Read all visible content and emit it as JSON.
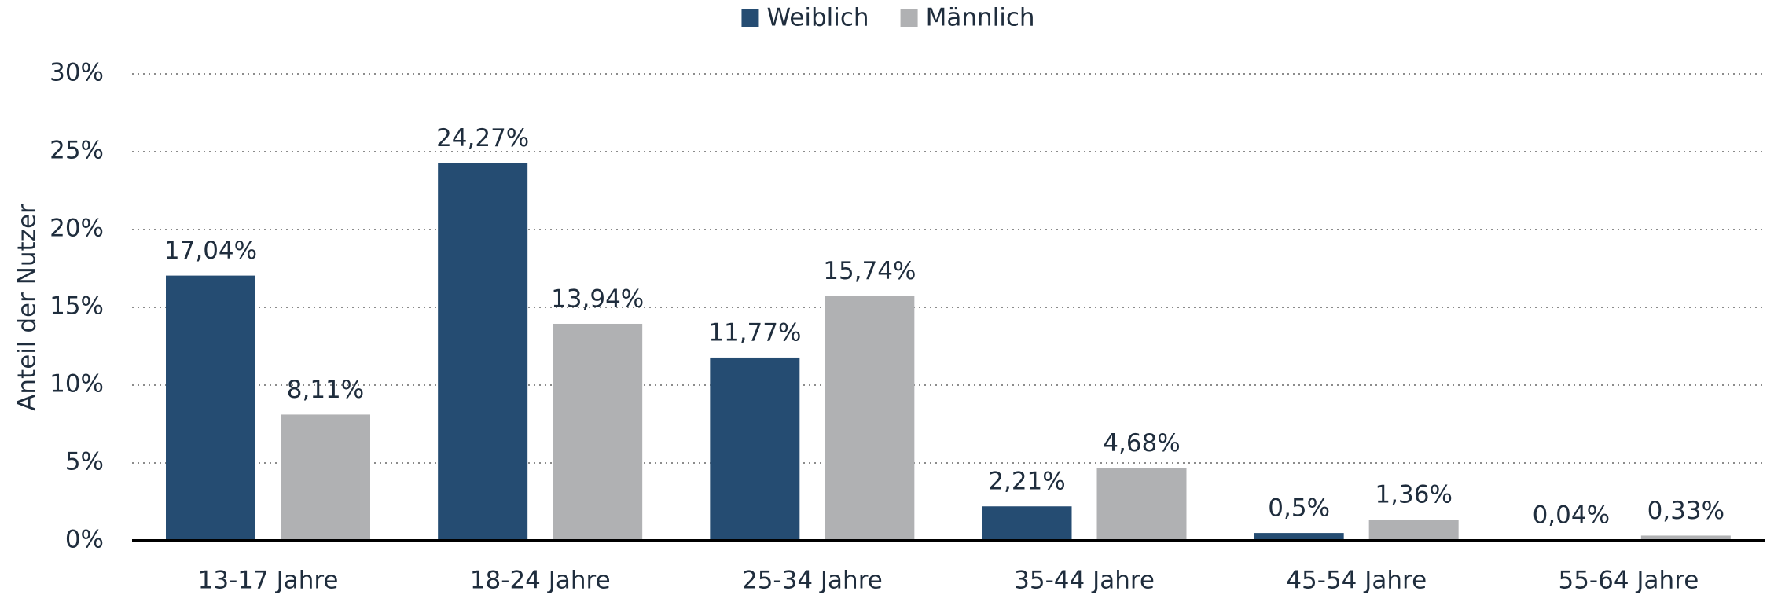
{
  "chart_data": {
    "type": "bar",
    "y_axis_label": "Anteil der Nutzer",
    "categories": [
      "13-17 Jahre",
      "18-24 Jahre",
      "25-34 Jahre",
      "35-44 Jahre",
      "45-54 Jahre",
      "55-64 Jahre"
    ],
    "series": [
      {
        "name": "Weiblich",
        "color": "#254c72",
        "values": [
          17.04,
          24.27,
          11.77,
          2.21,
          0.5,
          0.04
        ],
        "value_labels": [
          "17,04%",
          "24,27%",
          "11,77%",
          "2,21%",
          "0,5%",
          "0,04%"
        ]
      },
      {
        "name": "Männlich",
        "color": "#b0b1b3",
        "values": [
          8.11,
          13.94,
          15.74,
          4.68,
          1.36,
          0.33
        ],
        "value_labels": [
          "8,11%",
          "13,94%",
          "15,74%",
          "4,68%",
          "1,36%",
          "0,33%"
        ]
      }
    ],
    "ylim": [
      0,
      30
    ],
    "yticks": [
      {
        "value": 0,
        "label": "0%"
      },
      {
        "value": 5,
        "label": "5%"
      },
      {
        "value": 10,
        "label": "10%"
      },
      {
        "value": 15,
        "label": "15%"
      },
      {
        "value": 20,
        "label": "20%"
      },
      {
        "value": 25,
        "label": "25%"
      },
      {
        "value": 30,
        "label": "30%"
      }
    ],
    "grid": true,
    "legend": "top"
  }
}
